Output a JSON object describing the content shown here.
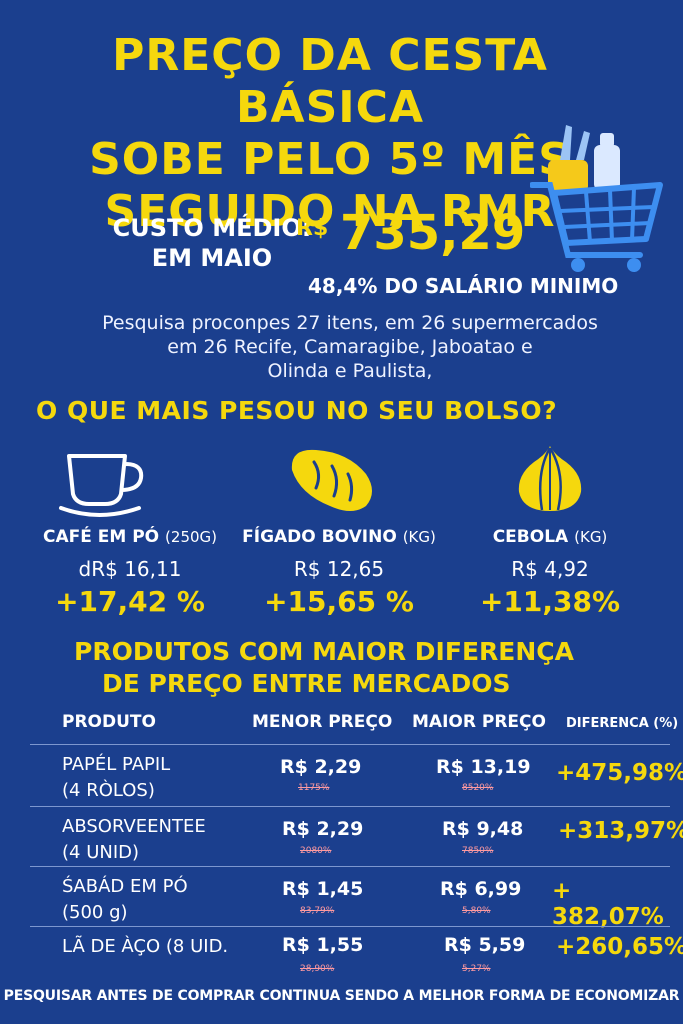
{
  "title": {
    "line1": "PREÇO DA CESTA BÁSICA",
    "line2": "SOBE PELO 5º MÊS",
    "line3": "SEGUIDO NA RMR"
  },
  "cost": {
    "label_line1": "CUSTO MÉDIO:",
    "label_line2": "EM MAIO",
    "currency": "R$",
    "value": "735,29",
    "salary_share": "48,4% DO SALÁRIO MINIMO"
  },
  "description": {
    "line1": "Pesquisa proconpes 27 itens, em 26 supermercados",
    "line2": "em 26 Recife, Camaragibe, Jaboatao e",
    "line3": "Olinda e Paulista,"
  },
  "section1_title": "O QUE MAIS PESOU NO SEU BOLSO?",
  "items": [
    {
      "name": "CAFÉ EM PÓ",
      "unit": "(250G)",
      "price": "dR$ 16,11",
      "change": "+17,42 %",
      "icon": "coffee-cup-icon"
    },
    {
      "name": "FÍGADO BOVINO",
      "unit": "(KG)",
      "price": "R$ 12,65",
      "change": "+15,65 %",
      "icon": "liver-icon"
    },
    {
      "name": "CEBOLA",
      "unit": "(KG)",
      "price": "R$ 4,92",
      "change": "+11,38%",
      "icon": "onion-icon"
    }
  ],
  "section2_title": {
    "line1": "PRODUTOS COM MAIOR DIFERENÇA",
    "line2": "DE PREÇO ENTRE MERCADOS"
  },
  "table": {
    "headers": [
      "PRODUTO",
      "MENOR PREÇO",
      "MAIOR PREÇO",
      "DIFERENCA (%)"
    ],
    "rows": [
      {
        "product_line1": "PAPÉL PAPIL",
        "product_line2": "(4 RÒLOS)",
        "min": "R$ 2,29",
        "min_sub": "1175%",
        "max": "R$ 13,19",
        "max_sub": "8520%",
        "diff": "+475,98%"
      },
      {
        "product_line1": "ABSORVEENTEE",
        "product_line2": "(4 UNID)",
        "min": "R$ 2,29",
        "min_sub": "2080%",
        "max": "R$ 9,48",
        "max_sub": "7850%",
        "diff": "+313,97%"
      },
      {
        "product_line1": "ŚABÁD EM PÓ",
        "product_line2": "(500 g)",
        "min": "R$ 1,45",
        "min_sub": "83,79%",
        "max": "R$ 6,99",
        "max_sub": "5,80%",
        "diff": "+ 382,07%"
      },
      {
        "product_line1": "LÃ DE ÀÇO (8 UID.",
        "product_line2": "",
        "min": "R$ 1,55",
        "min_sub": "28,90%",
        "max": "R$ 5,59",
        "max_sub": "5,27%",
        "diff": "+260,65%"
      }
    ]
  },
  "footer": "PESQUISAR ANTES DE COMPRAR CONTINUA SENDO A MELHOR FORMA DE ECONOMIZAR",
  "colors": {
    "background": "#1b3f8e",
    "accent": "#f5d80d",
    "cart": "#3d8ef0"
  }
}
